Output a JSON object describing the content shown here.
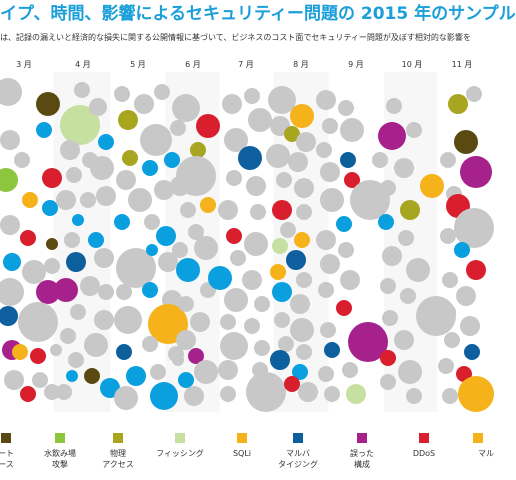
{
  "title": "イプ、時間、影響によるセキュリティー問題の 2015 年のサンプル",
  "subtitle": "は、記録の漏えいと経済的な損失に関する公開情報に基づいて、ビジネスのコスト面でセキュリティー問題が及ぼす相対的な影響を",
  "colors": {
    "title": "#1a9fd9",
    "divider": "#e6e6e6",
    "undisclosed": "#c8c8c8"
  },
  "chart_data": {
    "type": "scatter",
    "x_axis": {
      "labels": [
        "3 月",
        "4 月",
        "5 月",
        "6 月",
        "7 月",
        "8 月",
        "9 月",
        "10 月",
        "11 月"
      ]
    },
    "legend": [
      {
        "key": "dark",
        "label_lines": [
          "ート",
          "ース"
        ],
        "color": "#5a4a12"
      },
      {
        "key": "watering",
        "label_lines": [
          "水飲み場",
          "攻撃"
        ],
        "color": "#8cc63f"
      },
      {
        "key": "physical",
        "label_lines": [
          "物理",
          "アクセス"
        ],
        "color": "#a8a520"
      },
      {
        "key": "phishing",
        "label_lines": [
          "フィッシング"
        ],
        "color": "#c5e0a0"
      },
      {
        "key": "sqli",
        "label_lines": [
          "SQLi"
        ],
        "color": "#f5b21a"
      },
      {
        "key": "typosquat",
        "label_lines": [
          "マルバ",
          "タイジング"
        ],
        "color": "#0d5f9e"
      },
      {
        "key": "misconfig",
        "label_lines": [
          "誤った",
          "構成"
        ],
        "color": "#a6218c"
      },
      {
        "key": "ddos",
        "label_lines": [
          "DDoS"
        ],
        "color": "#d91f2d"
      },
      {
        "key": "malware",
        "label_lines": [
          "マル"
        ],
        "color": "#f5b21a"
      }
    ]
  }
}
